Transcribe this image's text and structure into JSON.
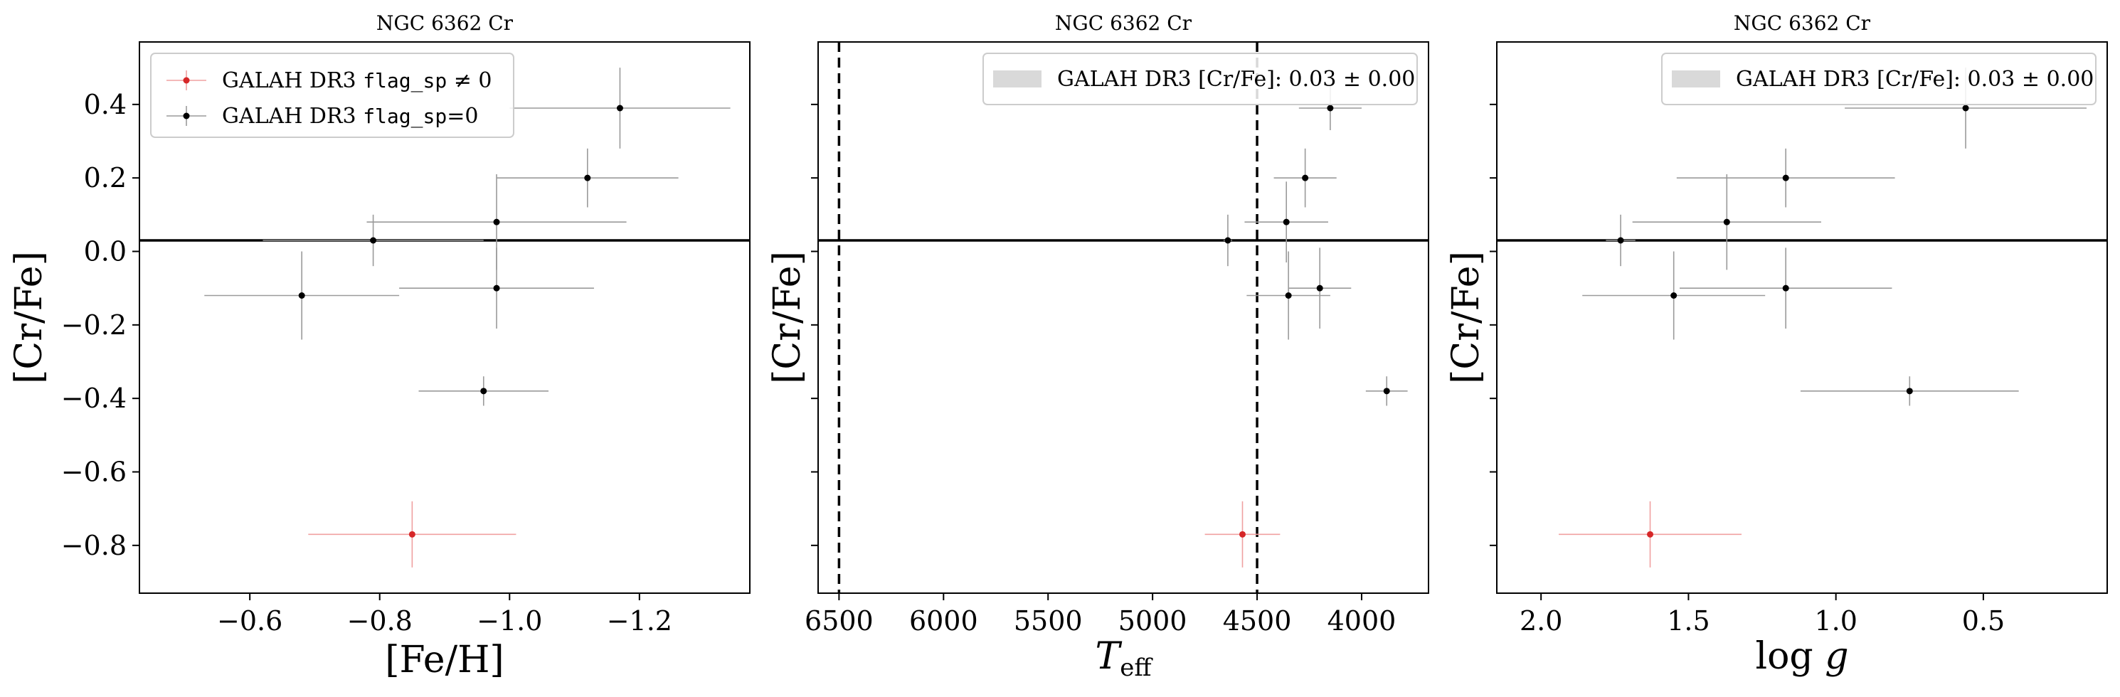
{
  "chart_data": [
    {
      "type": "scatter",
      "title": "NGC 6362 Cr",
      "xlabel": "[Fe/H]",
      "ylabel": "[Cr/Fe]",
      "xlim": [
        -0.43,
        -1.37
      ],
      "ylim": [
        -0.93,
        0.57
      ],
      "x_inverted": true,
      "xticks": [
        -0.6,
        -0.8,
        -1.0,
        -1.2
      ],
      "xtick_labels": [
        "−0.6",
        "−0.8",
        "−1.0",
        "−1.2"
      ],
      "yticks": [
        0.4,
        0.2,
        0.0,
        -0.2,
        -0.4,
        -0.6,
        -0.8
      ],
      "ytick_labels": [
        "0.4",
        "0.2",
        "0.0",
        "−0.2",
        "−0.4",
        "−0.6",
        "−0.8"
      ],
      "hline": 0.03,
      "legend": {
        "position": "upper-left",
        "entries": [
          {
            "prefix": "GALAH DR3 ",
            "code": "flag_sp",
            "suffix": " ≠ 0",
            "color": "#d62728"
          },
          {
            "prefix": "GALAH DR3 ",
            "code": "flag_sp",
            "suffix": "=0",
            "color": "#000000"
          }
        ]
      },
      "series": [
        {
          "flag": "flag_sp=0",
          "color": "#000000",
          "points": [
            {
              "x": -1.17,
              "y": 0.39,
              "xerr": 0.17,
              "yerr": 0.11
            },
            {
              "x": -1.12,
              "y": 0.2,
              "xerr": 0.14,
              "yerr": 0.08
            },
            {
              "x": -0.98,
              "y": 0.08,
              "xerr": 0.2,
              "yerr": 0.13
            },
            {
              "x": -0.79,
              "y": 0.03,
              "xerr": 0.17,
              "yerr": 0.07
            },
            {
              "x": -0.98,
              "y": -0.1,
              "xerr": 0.15,
              "yerr": 0.11
            },
            {
              "x": -0.68,
              "y": -0.12,
              "xerr": 0.15,
              "yerr": 0.12
            },
            {
              "x": -0.96,
              "y": -0.38,
              "xerr": 0.1,
              "yerr": 0.04
            }
          ]
        },
        {
          "flag": "flag_sp≠0",
          "color": "#d62728",
          "points": [
            {
              "x": -0.85,
              "y": -0.77,
              "xerr": 0.16,
              "yerr": 0.09
            }
          ]
        }
      ]
    },
    {
      "type": "scatter",
      "title": "NGC 6362 Cr",
      "xlabel": "T_eff",
      "ylabel": "[Cr/Fe]",
      "xlim": [
        6600,
        3680
      ],
      "ylim": [
        -0.93,
        0.57
      ],
      "x_inverted": true,
      "xticks": [
        6500,
        6000,
        5500,
        5000,
        4500,
        4000
      ],
      "xtick_labels": [
        "6500",
        "6000",
        "5500",
        "5000",
        "4500",
        "4000"
      ],
      "yticks": [
        0.4,
        0.2,
        0.0,
        -0.2,
        -0.4,
        -0.6,
        -0.8
      ],
      "vlines": [
        6500,
        4500
      ],
      "hline": 0.03,
      "legend": {
        "position": "upper-right",
        "entries": [
          {
            "label": "GALAH DR3 [Cr/Fe]: 0.03 ± 0.00",
            "color": "#d9d9d9"
          }
        ]
      },
      "series": [
        {
          "flag": "flag_sp=0",
          "color": "#000000",
          "points": [
            {
              "x": 4150,
              "y": 0.39,
              "xerr": 150,
              "yerr": 0.06
            },
            {
              "x": 4270,
              "y": 0.2,
              "xerr": 150,
              "yerr": 0.08
            },
            {
              "x": 4360,
              "y": 0.08,
              "xerr": 200,
              "yerr": 0.11
            },
            {
              "x": 4640,
              "y": 0.03,
              "xerr": 20,
              "yerr": 0.07
            },
            {
              "x": 4200,
              "y": -0.1,
              "xerr": 150,
              "yerr": 0.11
            },
            {
              "x": 4350,
              "y": -0.12,
              "xerr": 200,
              "yerr": 0.12
            },
            {
              "x": 3880,
              "y": -0.38,
              "xerr": 100,
              "yerr": 0.04
            }
          ]
        },
        {
          "flag": "flag_sp≠0",
          "color": "#d62728",
          "points": [
            {
              "x": 4570,
              "y": -0.77,
              "xerr": 180,
              "yerr": 0.09
            }
          ]
        }
      ]
    },
    {
      "type": "scatter",
      "title": "NGC 6362 Cr",
      "xlabel": "log g",
      "ylabel": "[Cr/Fe]",
      "xlim": [
        2.15,
        0.08
      ],
      "ylim": [
        -0.93,
        0.57
      ],
      "x_inverted": true,
      "xticks": [
        2.0,
        1.5,
        1.0,
        0.5
      ],
      "xtick_labels": [
        "2.0",
        "1.5",
        "1.0",
        "0.5"
      ],
      "yticks": [
        0.4,
        0.2,
        0.0,
        -0.2,
        -0.4,
        -0.6,
        -0.8
      ],
      "hline": 0.03,
      "legend": {
        "position": "upper-right",
        "entries": [
          {
            "label": "GALAH DR3 [Cr/Fe]: 0.03 ± 0.00",
            "color": "#d9d9d9"
          }
        ]
      },
      "series": [
        {
          "flag": "flag_sp=0",
          "color": "#000000",
          "points": [
            {
              "x": 0.56,
              "y": 0.39,
              "xerr": 0.41,
              "yerr": 0.11
            },
            {
              "x": 1.17,
              "y": 0.2,
              "xerr": 0.37,
              "yerr": 0.08
            },
            {
              "x": 1.37,
              "y": 0.08,
              "xerr": 0.32,
              "yerr": 0.13
            },
            {
              "x": 1.73,
              "y": 0.03,
              "xerr": 0.05,
              "yerr": 0.07
            },
            {
              "x": 1.17,
              "y": -0.1,
              "xerr": 0.36,
              "yerr": 0.11
            },
            {
              "x": 1.55,
              "y": -0.12,
              "xerr": 0.31,
              "yerr": 0.12
            },
            {
              "x": 0.75,
              "y": -0.38,
              "xerr": 0.37,
              "yerr": 0.04
            }
          ]
        },
        {
          "flag": "flag_sp≠0",
          "color": "#d62728",
          "points": [
            {
              "x": 1.63,
              "y": -0.77,
              "xerr": 0.31,
              "yerr": 0.09
            }
          ]
        }
      ]
    }
  ]
}
